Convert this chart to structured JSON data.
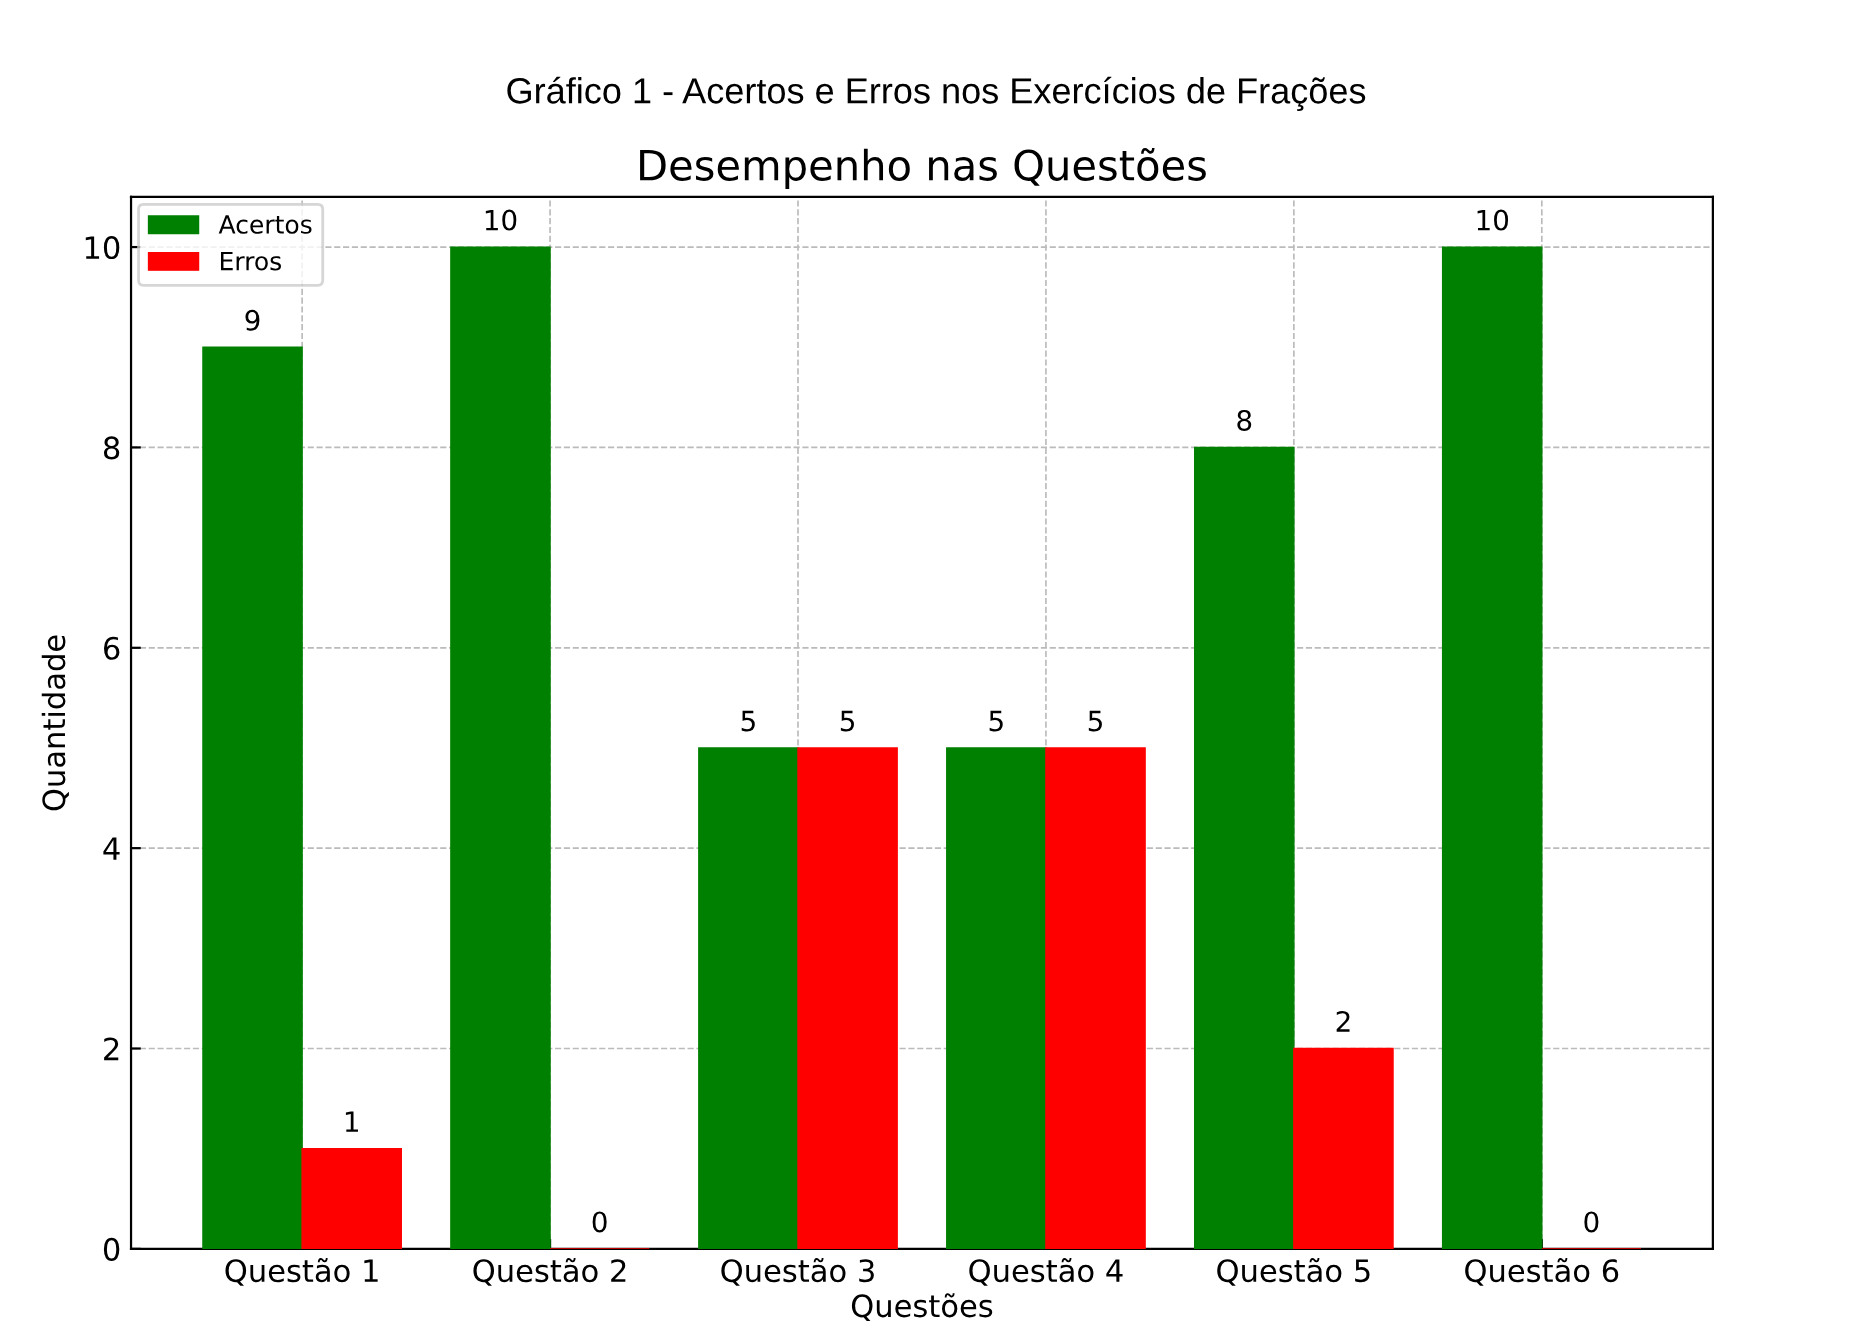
{
  "chart_data": {
    "type": "bar",
    "title": "Gráfico 1 - Acertos e Erros nos Exercícios de Frações",
    "subtitle": "Desempenho nas Questões",
    "xlabel": "Questões",
    "ylabel": "Quantidade",
    "categories": [
      "Questão 1",
      "Questão 2",
      "Questão 3",
      "Questão 4",
      "Questão 5",
      "Questão 6"
    ],
    "series": [
      {
        "name": "Acertos",
        "color": "#008000",
        "values": [
          9,
          10,
          5,
          5,
          8,
          10
        ]
      },
      {
        "name": "Erros",
        "color": "#ff0000",
        "values": [
          1,
          0,
          5,
          5,
          2,
          0
        ]
      }
    ],
    "ylim": [
      0,
      10.5
    ],
    "yticks": [
      0,
      2,
      4,
      6,
      8,
      10
    ],
    "grid": true,
    "legend": "top left",
    "data_labels": true
  }
}
